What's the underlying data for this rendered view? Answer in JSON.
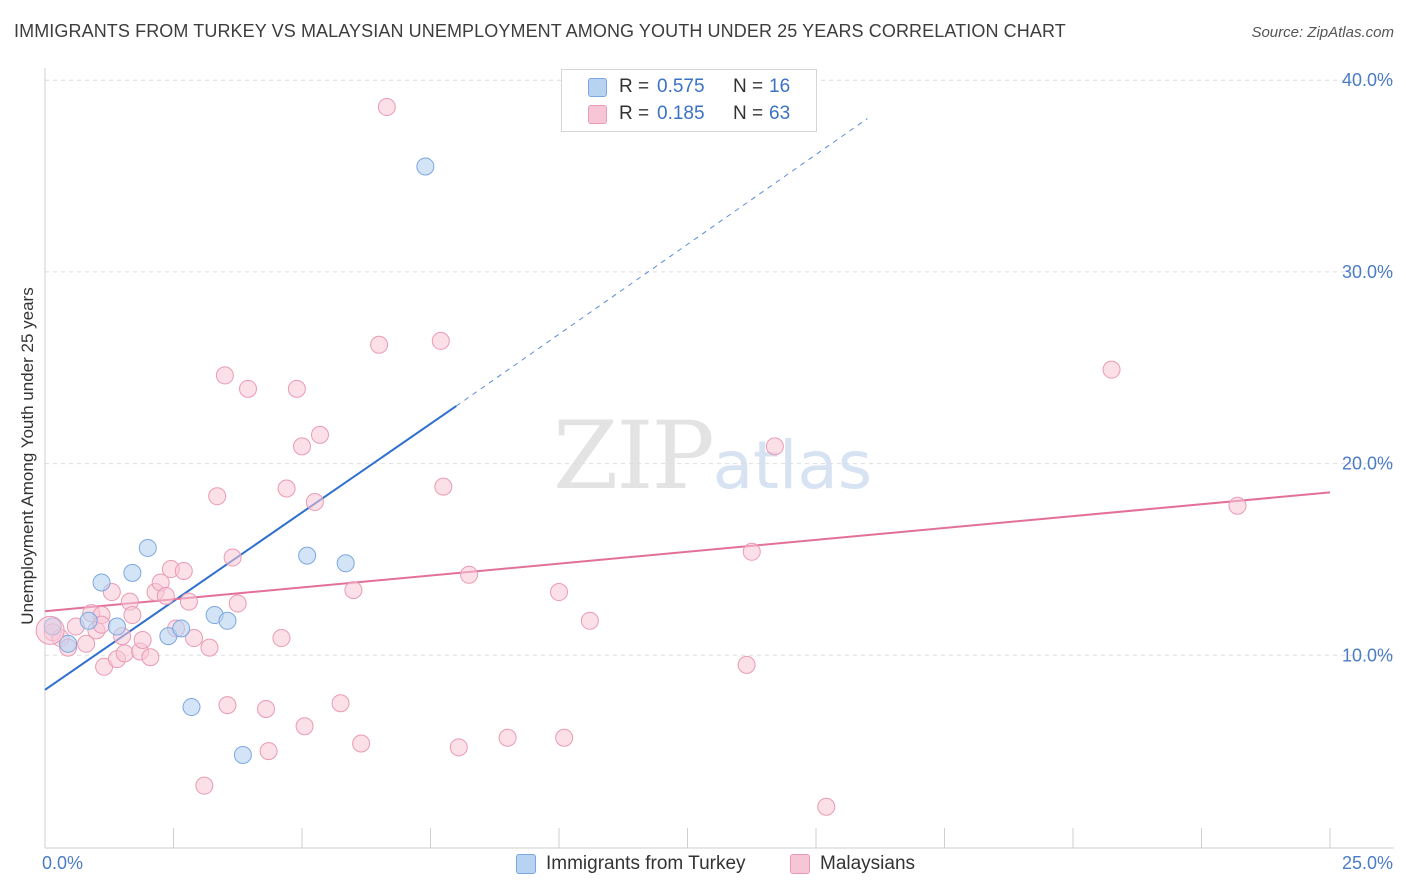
{
  "title": "IMMIGRANTS FROM TURKEY VS MALAYSIAN UNEMPLOYMENT AMONG YOUTH UNDER 25 YEARS CORRELATION CHART",
  "source": "Source: ZipAtlas.com",
  "watermark": {
    "zip": "ZIP",
    "atlas": "atlas"
  },
  "legend_top": [
    {
      "r_label": "R =",
      "r_value": "0.575",
      "n_label": "N =",
      "n_value": "16"
    },
    {
      "r_label": "R =",
      "r_value": "0.185",
      "n_label": "N =",
      "n_value": "63"
    }
  ],
  "legend_bottom": [
    {
      "label": "Immigrants from Turkey"
    },
    {
      "label": "Malaysians"
    }
  ],
  "colors": {
    "turkey_fill": "#b8d2f2",
    "turkey_stroke": "#7ba7e0",
    "turkey_line": "#2e6fcf",
    "malay_fill": "#f7c6d6",
    "malay_stroke": "#ea9ab5",
    "malay_line": "#e3709a",
    "tick_label": "#4a7cc7",
    "grid": "#dedede"
  },
  "chart_data": {
    "type": "scatter",
    "title": "IMMIGRANTS FROM TURKEY VS MALAYSIAN UNEMPLOYMENT AMONG YOUTH UNDER 25 YEARS CORRELATION CHART",
    "xlabel": "",
    "ylabel": "Unemployment Among Youth under 25 years",
    "xlim": [
      0,
      25
    ],
    "ylim": [
      0,
      42
    ],
    "x_tick_labels": [
      {
        "value": 0,
        "label": "0.0%"
      },
      {
        "value": 25,
        "label": "25.0%"
      }
    ],
    "y_tick_labels": [
      {
        "value": 10,
        "label": "10.0%"
      },
      {
        "value": 20,
        "label": "20.0%"
      },
      {
        "value": 30,
        "label": "30.0%"
      },
      {
        "value": 40,
        "label": "40.0%"
      }
    ],
    "grid": true,
    "legend_position": "bottom",
    "series": [
      {
        "name": "Immigrants from Turkey",
        "points": [
          [
            0.15,
            11.5
          ],
          [
            0.45,
            10.6
          ],
          [
            0.85,
            11.8
          ],
          [
            1.1,
            13.8
          ],
          [
            1.4,
            11.5
          ],
          [
            1.7,
            14.3
          ],
          [
            2.0,
            15.6
          ],
          [
            2.4,
            11.0
          ],
          [
            2.65,
            11.4
          ],
          [
            2.85,
            7.3
          ],
          [
            3.3,
            12.1
          ],
          [
            3.55,
            11.8
          ],
          [
            3.85,
            4.8
          ],
          [
            5.1,
            15.2
          ],
          [
            5.85,
            14.8
          ],
          [
            7.4,
            35.5
          ]
        ],
        "trend": {
          "x_start": 0,
          "y_start": 8.2,
          "x_solid_end": 8.0,
          "y_solid_end": 23.0,
          "x_dash_end": 16.0,
          "y_dash_end": 38.0
        }
      },
      {
        "name": "Malaysians",
        "points": [
          [
            0.15,
            11.2
          ],
          [
            0.3,
            10.9
          ],
          [
            0.45,
            10.4
          ],
          [
            0.6,
            11.5
          ],
          [
            0.8,
            10.6
          ],
          [
            0.9,
            12.2
          ],
          [
            1.0,
            11.3
          ],
          [
            1.1,
            12.1
          ],
          [
            1.15,
            9.4
          ],
          [
            1.3,
            13.3
          ],
          [
            1.4,
            9.8
          ],
          [
            1.5,
            11.0
          ],
          [
            1.55,
            10.1
          ],
          [
            1.65,
            12.8
          ],
          [
            1.7,
            12.1
          ],
          [
            1.85,
            10.2
          ],
          [
            1.9,
            10.8
          ],
          [
            2.05,
            9.9
          ],
          [
            2.15,
            13.3
          ],
          [
            2.25,
            13.8
          ],
          [
            2.35,
            13.1
          ],
          [
            2.45,
            14.5
          ],
          [
            2.55,
            11.4
          ],
          [
            2.7,
            14.4
          ],
          [
            2.8,
            12.8
          ],
          [
            2.9,
            10.9
          ],
          [
            3.1,
            3.2
          ],
          [
            3.2,
            10.4
          ],
          [
            3.35,
            18.3
          ],
          [
            3.55,
            7.4
          ],
          [
            3.65,
            15.1
          ],
          [
            3.75,
            12.7
          ],
          [
            3.95,
            23.9
          ],
          [
            4.3,
            7.2
          ],
          [
            4.35,
            5.0
          ],
          [
            4.6,
            10.9
          ],
          [
            4.7,
            18.7
          ],
          [
            4.9,
            23.9
          ],
          [
            5.0,
            20.9
          ],
          [
            5.05,
            6.3
          ],
          [
            5.25,
            18.0
          ],
          [
            5.35,
            21.5
          ],
          [
            5.75,
            7.5
          ],
          [
            6.0,
            13.4
          ],
          [
            6.15,
            5.4
          ],
          [
            6.5,
            26.2
          ],
          [
            6.65,
            38.6
          ],
          [
            7.7,
            26.4
          ],
          [
            7.75,
            18.8
          ],
          [
            8.05,
            5.2
          ],
          [
            8.25,
            14.2
          ],
          [
            9.0,
            5.7
          ],
          [
            10.0,
            13.3
          ],
          [
            10.1,
            5.7
          ],
          [
            10.6,
            11.8
          ],
          [
            13.65,
            9.5
          ],
          [
            13.75,
            15.4
          ],
          [
            14.2,
            20.9
          ],
          [
            15.2,
            2.1
          ],
          [
            20.75,
            24.9
          ],
          [
            23.2,
            17.8
          ],
          [
            3.5,
            24.6
          ],
          [
            1.1,
            11.6
          ]
        ],
        "trend": {
          "x_start": 0,
          "y_start": 12.3,
          "x_end": 25.0,
          "y_end": 18.5
        }
      }
    ]
  }
}
